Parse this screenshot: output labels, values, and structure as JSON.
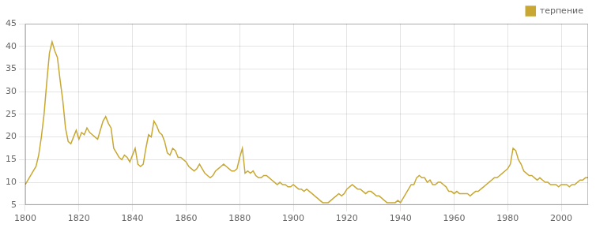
{
  "chart_data": {
    "type": "line",
    "x": [
      1800,
      1801,
      1802,
      1803,
      1804,
      1805,
      1806,
      1807,
      1808,
      1809,
      1810,
      1811,
      1812,
      1813,
      1814,
      1815,
      1816,
      1817,
      1818,
      1819,
      1820,
      1821,
      1822,
      1823,
      1824,
      1825,
      1826,
      1827,
      1828,
      1829,
      1830,
      1831,
      1832,
      1833,
      1834,
      1835,
      1836,
      1837,
      1838,
      1839,
      1840,
      1841,
      1842,
      1843,
      1844,
      1845,
      1846,
      1847,
      1848,
      1849,
      1850,
      1851,
      1852,
      1853,
      1854,
      1855,
      1856,
      1857,
      1858,
      1859,
      1860,
      1861,
      1862,
      1863,
      1864,
      1865,
      1866,
      1867,
      1868,
      1869,
      1870,
      1871,
      1872,
      1873,
      1874,
      1875,
      1876,
      1877,
      1878,
      1879,
      1880,
      1881,
      1882,
      1883,
      1884,
      1885,
      1886,
      1887,
      1888,
      1889,
      1890,
      1891,
      1892,
      1893,
      1894,
      1895,
      1896,
      1897,
      1898,
      1899,
      1900,
      1901,
      1902,
      1903,
      1904,
      1905,
      1906,
      1907,
      1908,
      1909,
      1910,
      1911,
      1912,
      1913,
      1914,
      1915,
      1916,
      1917,
      1918,
      1919,
      1920,
      1921,
      1922,
      1923,
      1924,
      1925,
      1926,
      1927,
      1928,
      1929,
      1930,
      1931,
      1932,
      1933,
      1934,
      1935,
      1936,
      1937,
      1938,
      1939,
      1940,
      1941,
      1942,
      1943,
      1944,
      1945,
      1946,
      1947,
      1948,
      1949,
      1950,
      1951,
      1952,
      1953,
      1954,
      1955,
      1956,
      1957,
      1958,
      1959,
      1960,
      1961,
      1962,
      1963,
      1964,
      1965,
      1966,
      1967,
      1968,
      1969,
      1970,
      1971,
      1972,
      1973,
      1974,
      1975,
      1976,
      1977,
      1978,
      1979,
      1980,
      1981,
      1982,
      1983,
      1984,
      1985,
      1986,
      1987,
      1988,
      1989,
      1990,
      1991,
      1992,
      1993,
      1994,
      1995,
      1996,
      1997,
      1998,
      1999,
      2000,
      2001,
      2002,
      2003,
      2004,
      2005,
      2006,
      2007,
      2008,
      2009,
      2010
    ],
    "series": [
      {
        "name": "терпение",
        "color": "#c8a832",
        "values": [
          9.5,
          10.5,
          11.5,
          12.5,
          13.5,
          16.0,
          20.0,
          25.0,
          32.0,
          38.5,
          41.0,
          39.0,
          37.5,
          32.5,
          28.0,
          22.0,
          19.0,
          18.5,
          20.0,
          21.5,
          19.5,
          21.0,
          20.5,
          22.0,
          21.0,
          20.5,
          20.0,
          19.5,
          21.5,
          23.5,
          24.5,
          23.0,
          22.0,
          17.5,
          16.5,
          15.5,
          15.0,
          16.0,
          15.5,
          14.5,
          16.0,
          17.5,
          14.0,
          13.5,
          14.0,
          17.5,
          20.5,
          20.0,
          23.5,
          22.5,
          21.0,
          20.5,
          19.0,
          16.5,
          16.0,
          17.5,
          17.0,
          15.5,
          15.5,
          15.0,
          14.5,
          13.5,
          13.0,
          12.5,
          13.0,
          14.0,
          13.0,
          12.0,
          11.5,
          11.0,
          11.5,
          12.5,
          13.0,
          13.5,
          14.0,
          13.5,
          13.0,
          12.5,
          12.5,
          13.0,
          15.5,
          17.5,
          12.0,
          12.5,
          12.0,
          12.5,
          11.5,
          11.0,
          11.0,
          11.5,
          11.5,
          11.0,
          10.5,
          10.0,
          9.5,
          10.0,
          9.5,
          9.5,
          9.0,
          9.0,
          9.5,
          9.0,
          8.5,
          8.5,
          8.0,
          8.5,
          8.0,
          7.5,
          7.0,
          6.5,
          6.0,
          5.5,
          5.5,
          5.5,
          6.0,
          6.5,
          7.0,
          7.5,
          7.0,
          7.5,
          8.5,
          9.0,
          9.5,
          9.0,
          8.5,
          8.5,
          8.0,
          7.5,
          8.0,
          8.0,
          7.5,
          7.0,
          7.0,
          6.5,
          6.0,
          5.5,
          5.5,
          5.5,
          5.5,
          6.0,
          5.5,
          6.5,
          7.5,
          8.5,
          9.5,
          9.5,
          11.0,
          11.5,
          11.0,
          11.0,
          10.0,
          10.5,
          9.5,
          9.5,
          10.0,
          10.0,
          9.5,
          9.0,
          8.0,
          8.0,
          7.5,
          8.0,
          7.5,
          7.5,
          7.5,
          7.5,
          7.0,
          7.5,
          8.0,
          8.0,
          8.5,
          9.0,
          9.5,
          10.0,
          10.5,
          11.0,
          11.0,
          11.5,
          12.0,
          12.5,
          13.0,
          14.0,
          17.5,
          17.0,
          15.0,
          14.0,
          12.5,
          12.0,
          11.5,
          11.5,
          11.0,
          10.5,
          11.0,
          10.5,
          10.0,
          10.0,
          9.5,
          9.5,
          9.5,
          9.0,
          9.5,
          9.5,
          9.5,
          9.0,
          9.5,
          9.5,
          10.0,
          10.5,
          10.5,
          11.0,
          11.0
        ]
      }
    ],
    "xlim": [
      1800,
      2010
    ],
    "ylim": [
      5,
      45
    ],
    "xticks": [
      1800,
      1820,
      1840,
      1860,
      1880,
      1900,
      1920,
      1940,
      1960,
      1980,
      2000
    ],
    "yticks": [
      5,
      10,
      15,
      20,
      25,
      30,
      35,
      40,
      45
    ],
    "grid": true,
    "legend": "upper right"
  }
}
